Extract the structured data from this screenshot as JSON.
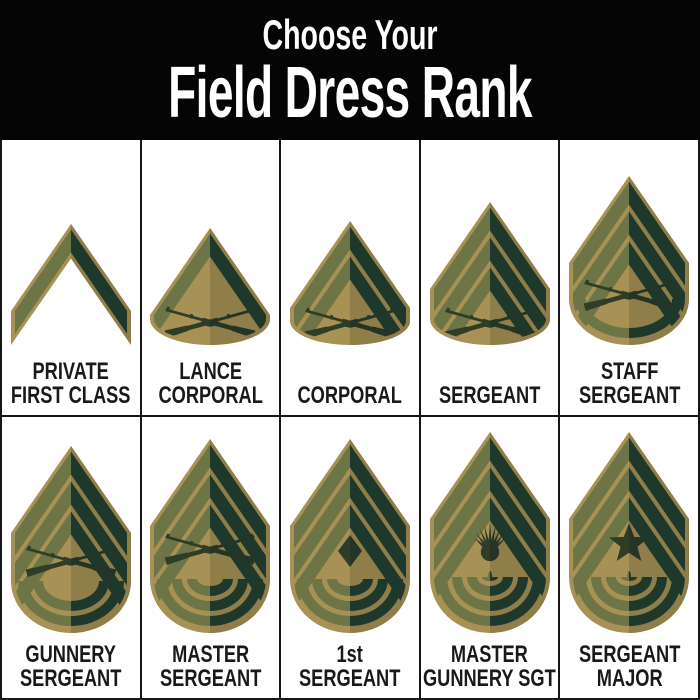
{
  "header": {
    "line1": "Choose Your",
    "line2": "Field Dress Rank",
    "background": "#050505",
    "text_color": "#ffffff"
  },
  "grid": {
    "cell_background": "#ffffff",
    "line_color": "#161616",
    "label_color": "#191919"
  },
  "palette": {
    "tan_left": "#a79155",
    "tan_right": "#8f7d4a",
    "olive_left": "#6d7546",
    "green_right": "#1e392b",
    "device_left": "#2f3d27",
    "device_right": "#243528"
  },
  "ranks": [
    {
      "id": "private-first-class",
      "label_lines": [
        "PRIVATE",
        "FIRST CLASS"
      ],
      "chevrons": 1,
      "rockers": 0,
      "device": "none"
    },
    {
      "id": "lance-corporal",
      "label_lines": [
        "LANCE",
        "CORPORAL"
      ],
      "chevrons": 1,
      "rockers": 0,
      "device": "crossed-rifles"
    },
    {
      "id": "corporal",
      "label_lines": [
        "CORPORAL"
      ],
      "chevrons": 2,
      "rockers": 0,
      "device": "crossed-rifles"
    },
    {
      "id": "sergeant",
      "label_lines": [
        "SERGEANT"
      ],
      "chevrons": 3,
      "rockers": 0,
      "device": "crossed-rifles"
    },
    {
      "id": "staff-sergeant",
      "label_lines": [
        "STAFF",
        "SERGEANT"
      ],
      "chevrons": 3,
      "rockers": 1,
      "device": "crossed-rifles"
    },
    {
      "id": "gunnery-sergeant",
      "label_lines": [
        "GUNNERY",
        "SERGEANT"
      ],
      "chevrons": 3,
      "rockers": 2,
      "device": "crossed-rifles"
    },
    {
      "id": "master-sergeant",
      "label_lines": [
        "MASTER",
        "SERGEANT"
      ],
      "chevrons": 3,
      "rockers": 3,
      "device": "crossed-rifles"
    },
    {
      "id": "first-sergeant",
      "label_lines": [
        "1st",
        "SERGEANT"
      ],
      "chevrons": 3,
      "rockers": 3,
      "device": "diamond"
    },
    {
      "id": "master-gunnery-sgt",
      "label_lines": [
        "MASTER",
        "GUNNERY SGT"
      ],
      "chevrons": 3,
      "rockers": 4,
      "device": "bursting-bomb"
    },
    {
      "id": "sergeant-major",
      "label_lines": [
        "SERGEANT",
        "MAJOR"
      ],
      "chevrons": 3,
      "rockers": 4,
      "device": "star"
    }
  ]
}
